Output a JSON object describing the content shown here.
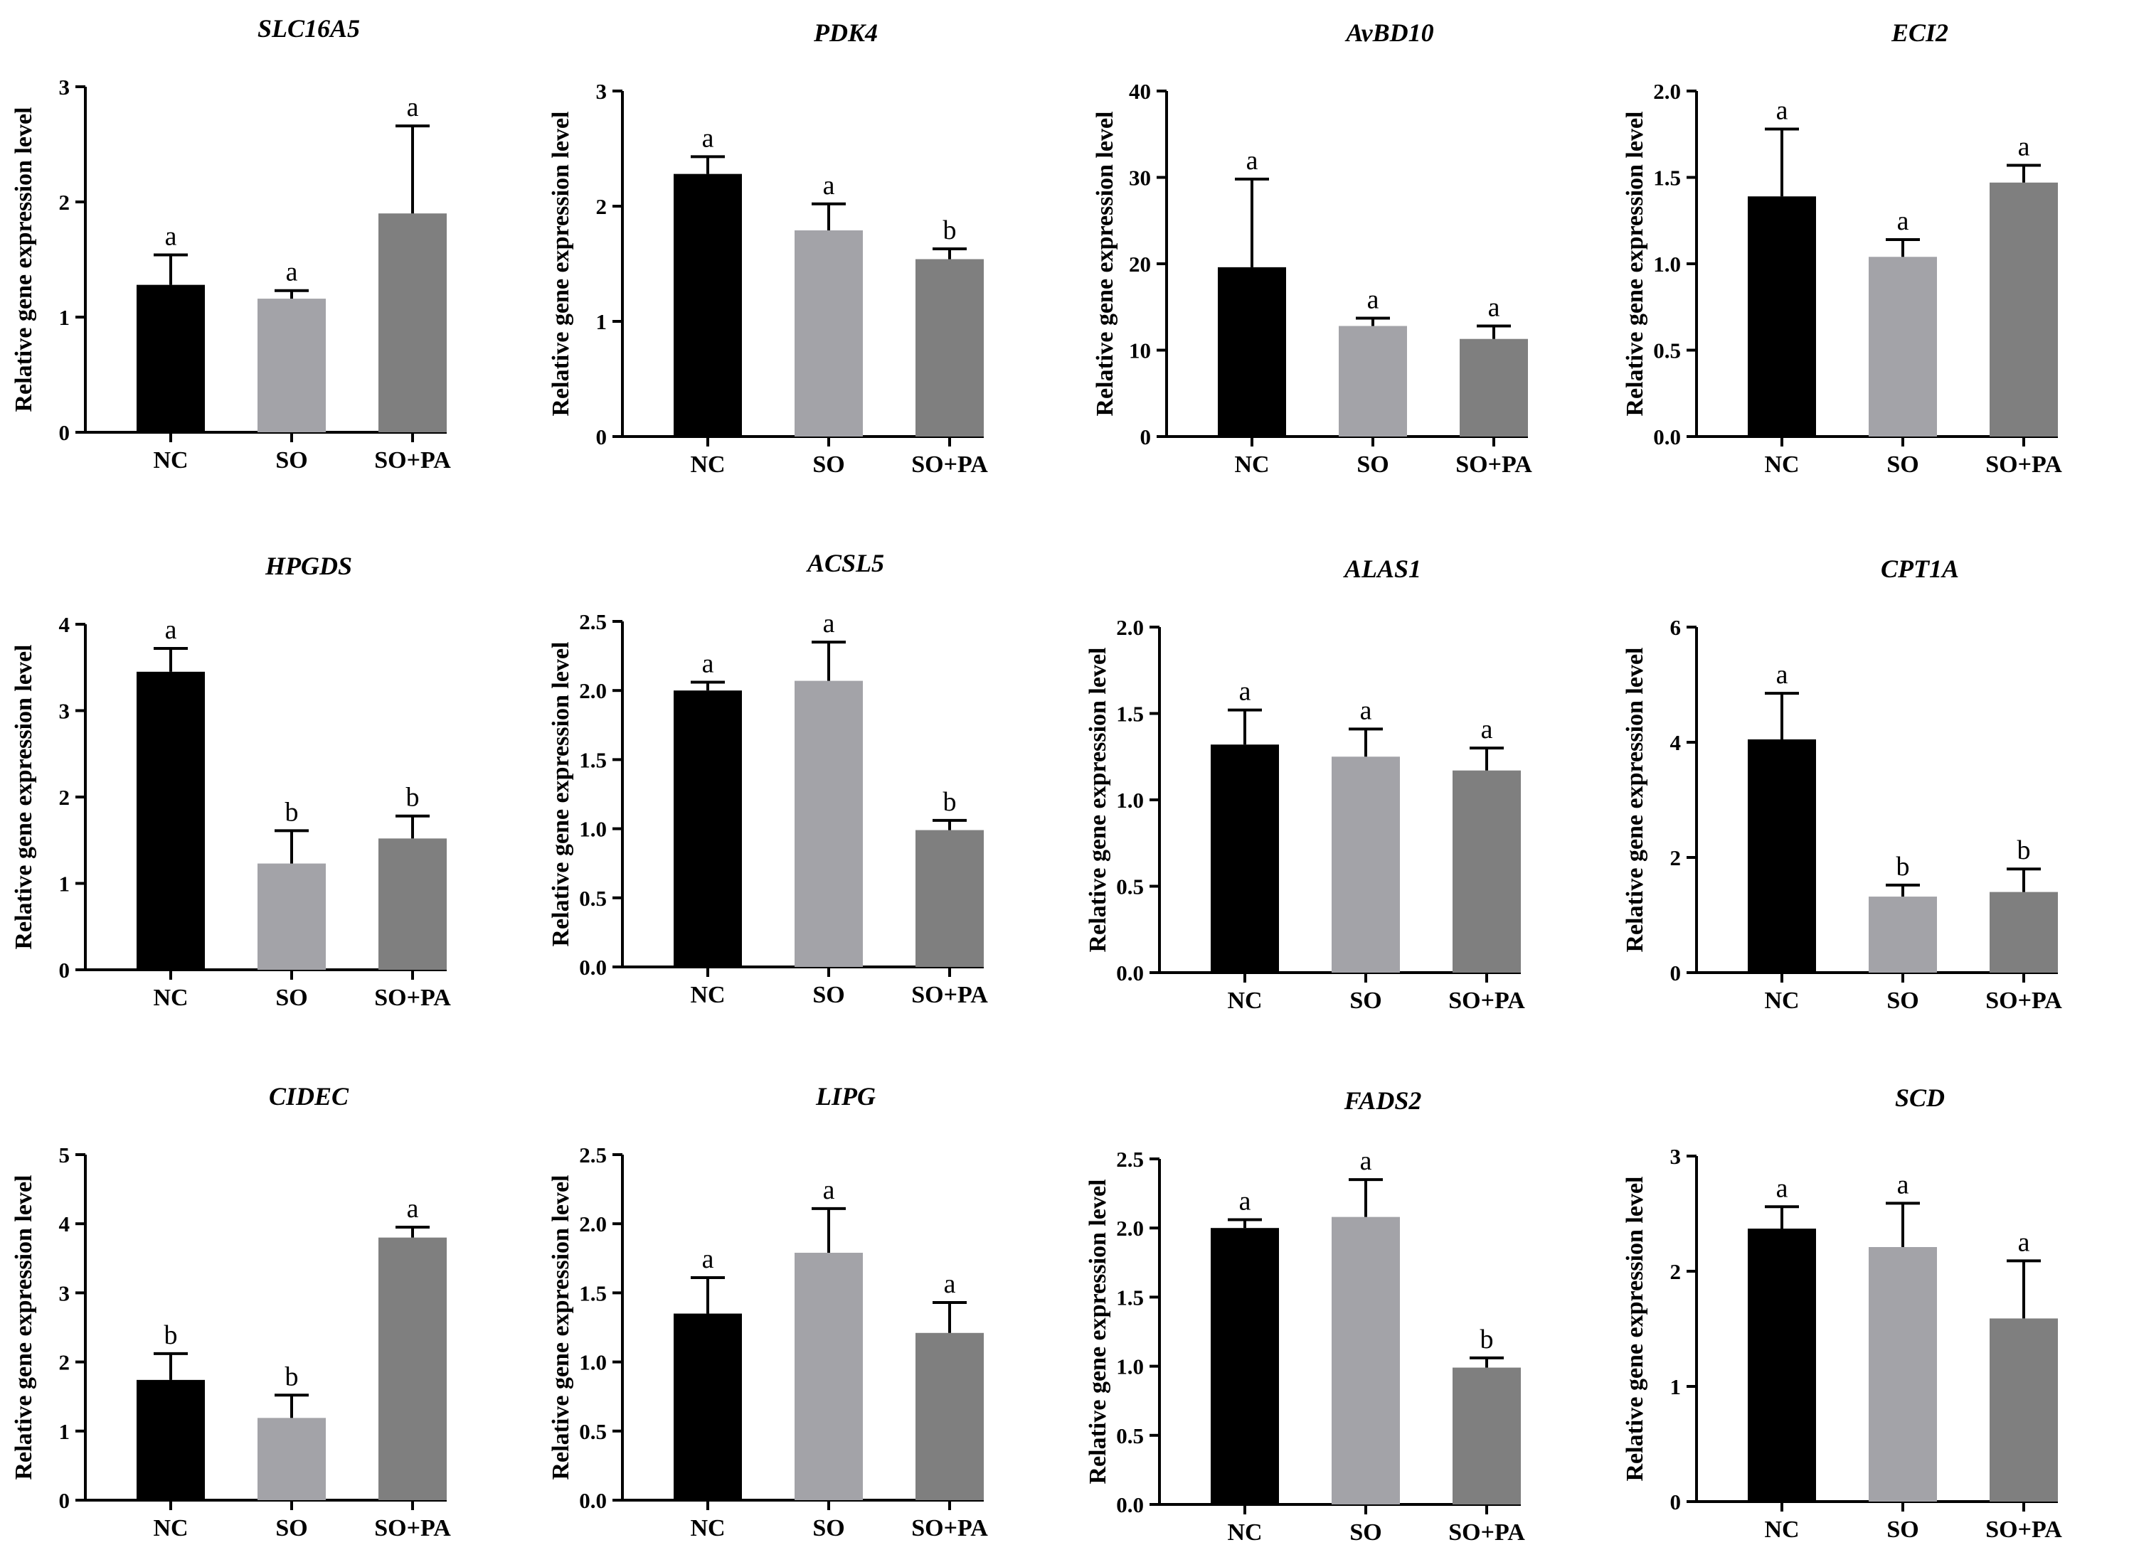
{
  "colors": {
    "NC": "#000000",
    "SO": "#a3a3a8",
    "SO+PA": "#7f7f7f"
  },
  "ylabel": "Relative gene expression level",
  "categories": [
    "NC",
    "SO",
    "SO+PA"
  ],
  "chart_data": [
    {
      "type": "bar",
      "title": "SLC16A5",
      "ylabel": "Relative gene expression level",
      "categories": [
        "NC",
        "SO",
        "SO+PA"
      ],
      "ylim": [
        0,
        3
      ],
      "ticks": [
        0,
        1,
        2,
        3
      ],
      "values": [
        1.28,
        1.16,
        1.9
      ],
      "errors": [
        0.26,
        0.07,
        0.76
      ],
      "letters": [
        "a",
        "a",
        "a"
      ]
    },
    {
      "type": "bar",
      "title": "PDK4",
      "ylabel": "Relative gene expression level",
      "categories": [
        "NC",
        "SO",
        "SO+PA"
      ],
      "ylim": [
        0,
        3
      ],
      "ticks": [
        0,
        1,
        2,
        3
      ],
      "values": [
        2.28,
        1.79,
        1.54
      ],
      "errors": [
        0.15,
        0.23,
        0.09
      ],
      "letters": [
        "a",
        "a",
        "b"
      ]
    },
    {
      "type": "bar",
      "title": "AvBD10",
      "ylabel": "Relative gene expression level",
      "categories": [
        "NC",
        "SO",
        "SO+PA"
      ],
      "ylim": [
        0,
        40
      ],
      "ticks": [
        0,
        10,
        20,
        30,
        40
      ],
      "values": [
        19.6,
        12.8,
        11.3
      ],
      "errors": [
        10.2,
        0.9,
        1.5
      ],
      "letters": [
        "a",
        "a",
        "a"
      ]
    },
    {
      "type": "bar",
      "title": "ECI2",
      "ylabel": "Relative gene expression level",
      "categories": [
        "NC",
        "SO",
        "SO+PA"
      ],
      "ylim": [
        0,
        2
      ],
      "ticks": [
        "0.0",
        "0.5",
        "1.0",
        "1.5",
        "2.0"
      ],
      "values": [
        1.39,
        1.04,
        1.47
      ],
      "errors": [
        0.39,
        0.1,
        0.1
      ],
      "letters": [
        "a",
        "a",
        "a"
      ]
    },
    {
      "type": "bar",
      "title": "HPGDS",
      "ylabel": "Relative gene expression level",
      "categories": [
        "NC",
        "SO",
        "SO+PA"
      ],
      "ylim": [
        0,
        4
      ],
      "ticks": [
        0,
        1,
        2,
        3,
        4
      ],
      "values": [
        3.45,
        1.23,
        1.52
      ],
      "errors": [
        0.27,
        0.38,
        0.26
      ],
      "letters": [
        "a",
        "b",
        "b"
      ]
    },
    {
      "type": "bar",
      "title": "ACSL5",
      "ylabel": "Relative gene expression level",
      "categories": [
        "NC",
        "SO",
        "SO+PA"
      ],
      "ylim": [
        0,
        2.5
      ],
      "ticks": [
        "0.0",
        "0.5",
        "1.0",
        "1.5",
        "2.0",
        "2.5"
      ],
      "values": [
        2.0,
        2.07,
        0.99
      ],
      "errors": [
        0.06,
        0.28,
        0.07
      ],
      "letters": [
        "a",
        "a",
        "b"
      ]
    },
    {
      "type": "bar",
      "title": "ALAS1",
      "ylabel": "Relative gene expression level",
      "categories": [
        "NC",
        "SO",
        "SO+PA"
      ],
      "ylim": [
        0,
        2
      ],
      "ticks": [
        "0.0",
        "0.5",
        "1.0",
        "1.5",
        "2.0"
      ],
      "values": [
        1.32,
        1.25,
        1.17
      ],
      "errors": [
        0.2,
        0.16,
        0.13
      ],
      "letters": [
        "a",
        "a",
        "a"
      ]
    },
    {
      "type": "bar",
      "title": "CPT1A",
      "ylabel": "Relative gene expression level",
      "categories": [
        "NC",
        "SO",
        "SO+PA"
      ],
      "ylim": [
        0,
        6
      ],
      "ticks": [
        0,
        2,
        4,
        6
      ],
      "values": [
        4.05,
        1.32,
        1.4
      ],
      "errors": [
        0.8,
        0.2,
        0.4
      ],
      "letters": [
        "a",
        "b",
        "b"
      ]
    },
    {
      "type": "bar",
      "title": "CIDEC",
      "ylabel": "Relative gene expression level",
      "categories": [
        "NC",
        "SO",
        "SO+PA"
      ],
      "ylim": [
        0,
        5
      ],
      "ticks": [
        0,
        1,
        2,
        3,
        4,
        5
      ],
      "values": [
        1.74,
        1.19,
        3.8
      ],
      "errors": [
        0.38,
        0.33,
        0.15
      ],
      "letters": [
        "b",
        "b",
        "a"
      ]
    },
    {
      "type": "bar",
      "title": "LIPG",
      "ylabel": "Relative gene expression level",
      "categories": [
        "NC",
        "SO",
        "SO+PA"
      ],
      "ylim": [
        0,
        2.5
      ],
      "ticks": [
        "0.0",
        "0.5",
        "1.0",
        "1.5",
        "2.0",
        "2.5"
      ],
      "values": [
        1.35,
        1.79,
        1.21
      ],
      "errors": [
        0.26,
        0.32,
        0.22
      ],
      "letters": [
        "a",
        "a",
        "a"
      ]
    },
    {
      "type": "bar",
      "title": "FADS2",
      "ylabel": "Relative gene expression level",
      "categories": [
        "NC",
        "SO",
        "SO+PA"
      ],
      "ylim": [
        0,
        2.5
      ],
      "ticks": [
        "0.0",
        "0.5",
        "1.0",
        "1.5",
        "2.0",
        "2.5"
      ],
      "values": [
        2.0,
        2.08,
        0.99
      ],
      "errors": [
        0.06,
        0.27,
        0.07
      ],
      "letters": [
        "a",
        "a",
        "b"
      ]
    },
    {
      "type": "bar",
      "title": "SCD",
      "ylabel": "Relative gene expression level",
      "categories": [
        "NC",
        "SO",
        "SO+PA"
      ],
      "ylim": [
        0,
        3
      ],
      "ticks": [
        0,
        1,
        2,
        3
      ],
      "values": [
        2.37,
        2.21,
        1.59
      ],
      "errors": [
        0.19,
        0.38,
        0.5
      ],
      "letters": [
        "a",
        "a",
        "a"
      ]
    }
  ]
}
